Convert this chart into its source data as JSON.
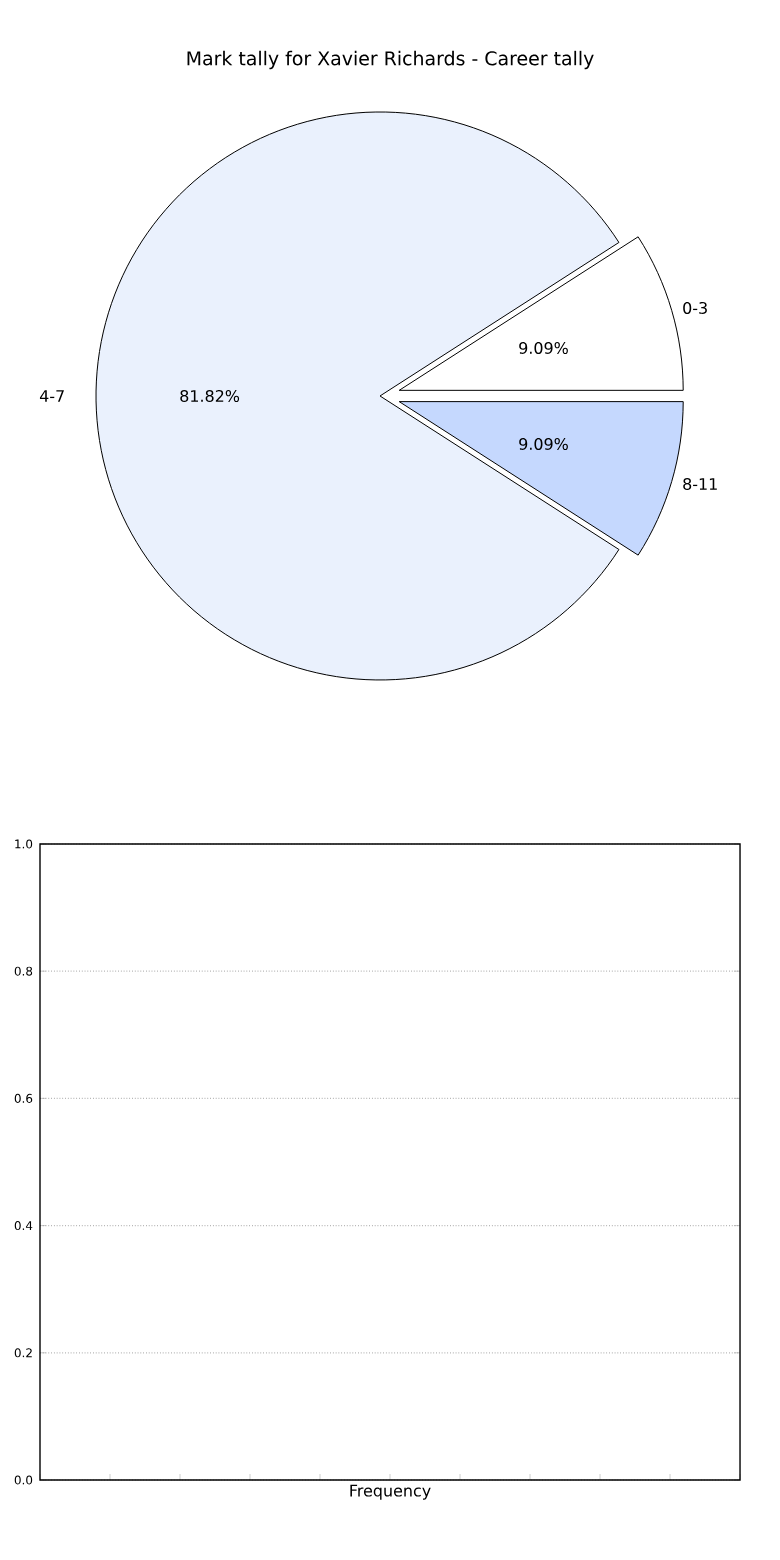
{
  "chart_data": [
    {
      "type": "pie",
      "title": "Mark tally for Xavier Richards - Career tally",
      "categories": [
        "0-3",
        "4-7",
        "8-11"
      ],
      "values": [
        9.09,
        81.82,
        9.09
      ],
      "colors": [
        "#ffffff",
        "#eaf1fd",
        "#c5d8fe"
      ],
      "value_labels": [
        "9.09%",
        "81.82%",
        "9.09%"
      ]
    },
    {
      "type": "bar",
      "categories": [
        null
      ],
      "values": [
        null
      ],
      "xlabel": "Frequency",
      "ylim": [
        0,
        1
      ],
      "yticks": [
        {
          "value": 0,
          "label": "0.0"
        },
        0.2,
        0.4,
        0.6,
        0.8,
        {
          "value": 1,
          "label": "1.0"
        }
      ],
      "grid": "y",
      "tick_labels": "y"
    }
  ]
}
